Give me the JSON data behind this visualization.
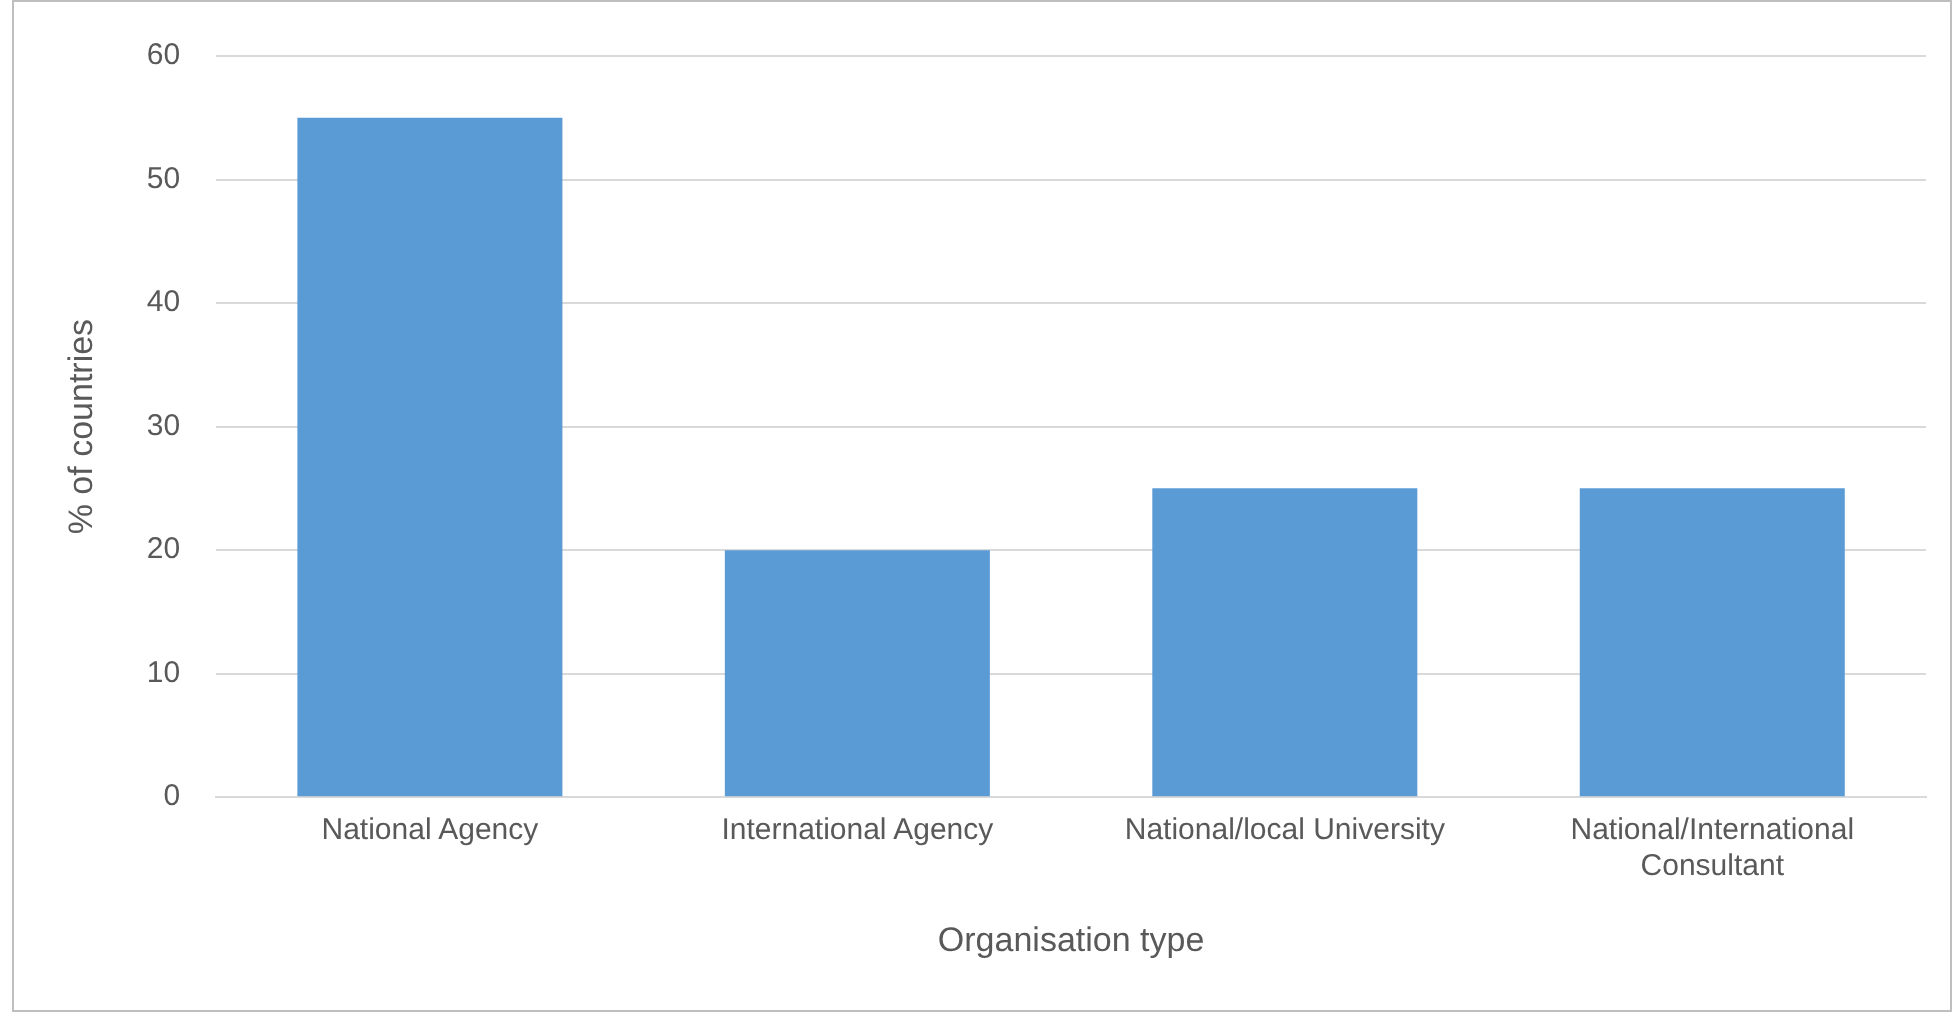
{
  "chart_data": {
    "type": "bar",
    "xlabel": "Organisation type",
    "ylabel": "% of countries",
    "categories": [
      "National Agency",
      "International Agency",
      "National/local University",
      "National/International Consultant"
    ],
    "values": [
      55,
      20,
      25,
      25
    ],
    "color": "#5b9bd5",
    "ylim": [
      0,
      60
    ],
    "yticks": [
      0,
      10,
      20,
      30,
      40,
      50,
      60
    ],
    "grid": "y"
  }
}
